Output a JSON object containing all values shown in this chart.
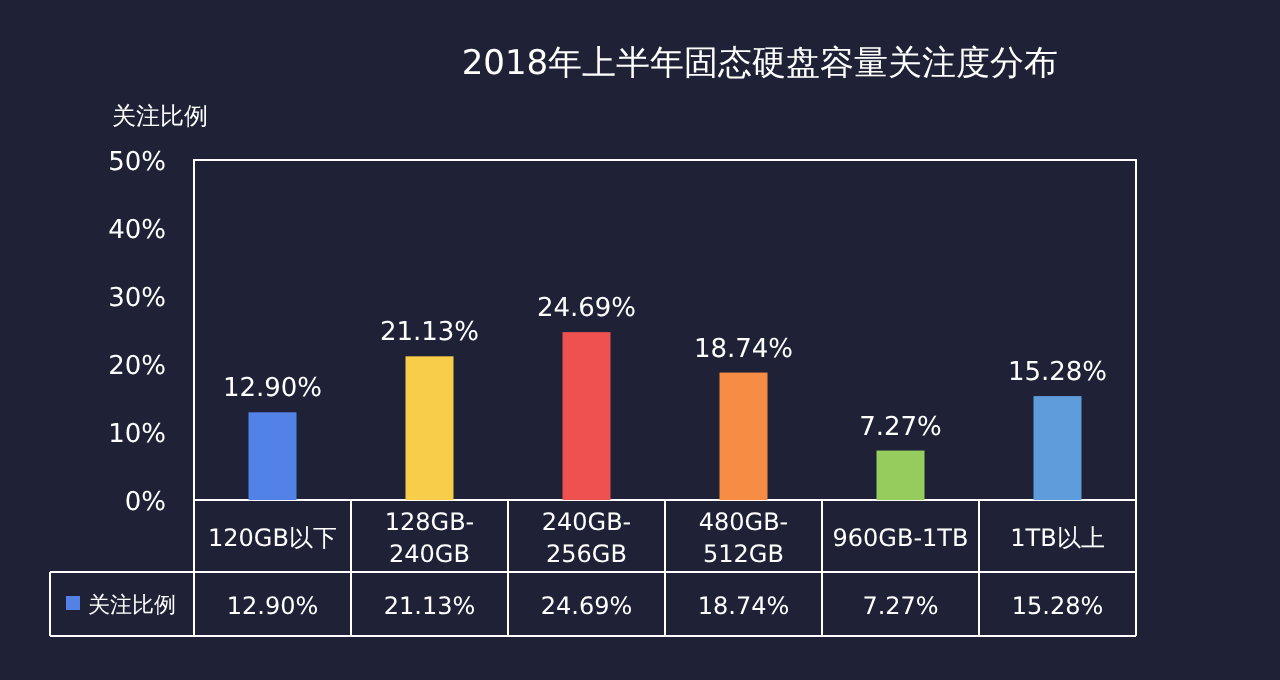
{
  "chart_data": {
    "type": "bar",
    "title": "2018年上半年固态硬盘容量关注度分布",
    "ylabel": "关注比例",
    "categories": [
      "120GB以下",
      "128GB-240GB",
      "240GB-256GB",
      "480GB-512GB",
      "960GB-1TB",
      "1TB以上"
    ],
    "values": [
      12.9,
      21.13,
      24.69,
      18.74,
      7.27,
      15.28
    ],
    "value_labels": [
      "12.90%",
      "21.13%",
      "24.69%",
      "18.74%",
      "7.27%",
      "15.28%"
    ],
    "colors": [
      "#5282e6",
      "#f8cd4a",
      "#ef5150",
      "#f78d45",
      "#95cc5d",
      "#5e9cdc"
    ],
    "ylim": [
      0,
      50
    ],
    "yticks": [
      {
        "value": 0,
        "label": "0%"
      },
      {
        "value": 10,
        "label": "10%"
      },
      {
        "value": 20,
        "label": "20%"
      },
      {
        "value": 30,
        "label": "30%"
      },
      {
        "value": 40,
        "label": "40%"
      },
      {
        "value": 50,
        "label": "50%"
      }
    ],
    "annotations": [
      "关注比例"
    ]
  }
}
